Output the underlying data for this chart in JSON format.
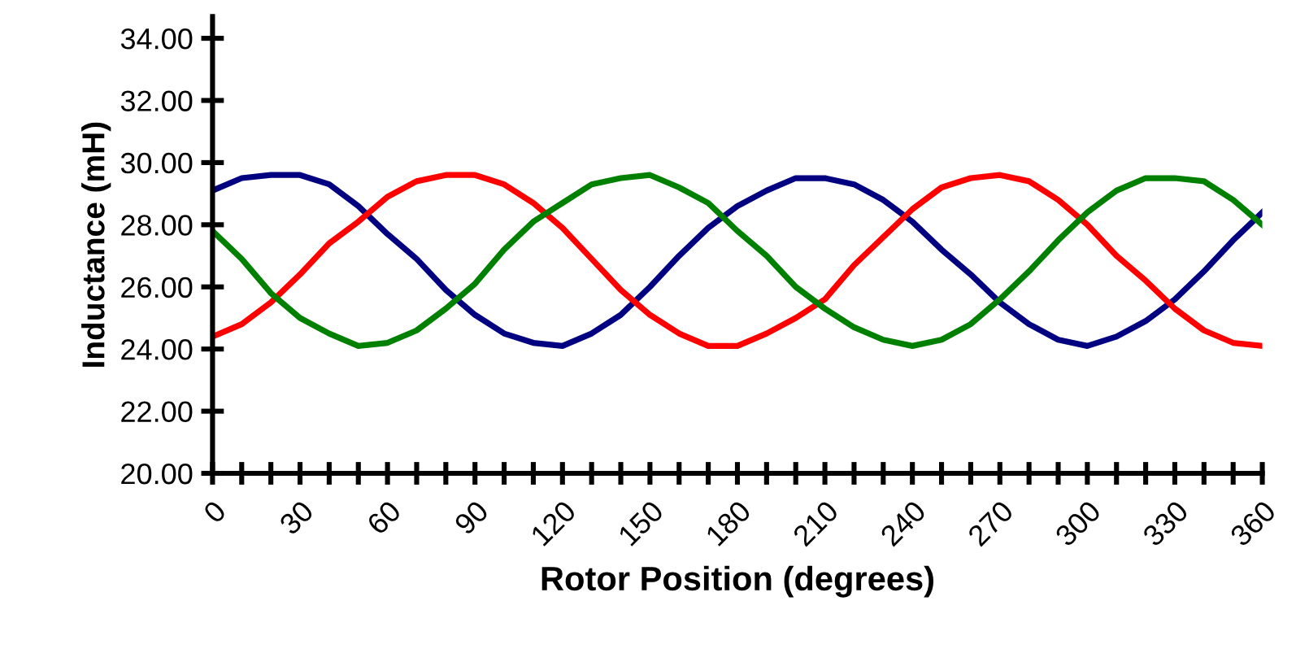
{
  "chart_data": {
    "type": "line",
    "xlabel": "Rotor Position (degrees)",
    "ylabel": "Inductance (mH)",
    "x": [
      0,
      10,
      20,
      30,
      40,
      50,
      60,
      70,
      80,
      90,
      100,
      110,
      120,
      130,
      140,
      150,
      160,
      170,
      180,
      190,
      200,
      210,
      220,
      230,
      240,
      250,
      260,
      270,
      280,
      290,
      300,
      310,
      320,
      330,
      340,
      350,
      360
    ],
    "series": [
      {
        "color": "#000080",
        "values": [
          29.1,
          29.5,
          29.6,
          29.6,
          29.3,
          28.6,
          27.7,
          26.9,
          25.9,
          25.1,
          24.5,
          24.2,
          24.1,
          24.5,
          25.1,
          26.0,
          27.0,
          27.9,
          28.6,
          29.1,
          29.5,
          29.5,
          29.3,
          28.8,
          28.1,
          27.2,
          26.4,
          25.5,
          24.8,
          24.3,
          24.1,
          24.4,
          24.9,
          25.6,
          26.5,
          27.5,
          28.4
        ]
      },
      {
        "color": "#ff0000",
        "values": [
          24.4,
          24.8,
          25.5,
          26.4,
          27.4,
          28.1,
          28.9,
          29.4,
          29.6,
          29.6,
          29.3,
          28.7,
          27.9,
          26.9,
          25.9,
          25.1,
          24.5,
          24.1,
          24.1,
          24.5,
          25.0,
          25.6,
          26.7,
          27.6,
          28.5,
          29.2,
          29.5,
          29.6,
          29.4,
          28.8,
          28.0,
          27.0,
          26.2,
          25.3,
          24.6,
          24.2,
          24.1
        ]
      },
      {
        "color": "#008000",
        "values": [
          27.8,
          26.9,
          25.8,
          25.0,
          24.5,
          24.1,
          24.2,
          24.6,
          25.3,
          26.1,
          27.2,
          28.1,
          28.7,
          29.3,
          29.5,
          29.6,
          29.2,
          28.7,
          27.8,
          27.0,
          26.0,
          25.3,
          24.7,
          24.3,
          24.1,
          24.3,
          24.8,
          25.6,
          26.5,
          27.5,
          28.4,
          29.1,
          29.5,
          29.5,
          29.4,
          28.8,
          28.0
        ]
      }
    ],
    "xlim": [
      0,
      360
    ],
    "xticks": [
      0,
      {
        "value": 10,
        "label": null
      },
      {
        "value": 20,
        "label": null
      },
      30,
      {
        "value": 40,
        "label": null
      },
      {
        "value": 50,
        "label": null
      },
      60,
      {
        "value": 70,
        "label": null
      },
      {
        "value": 80,
        "label": null
      },
      90,
      {
        "value": 100,
        "label": null
      },
      {
        "value": 110,
        "label": null
      },
      120,
      {
        "value": 130,
        "label": null
      },
      {
        "value": 140,
        "label": null
      },
      150,
      {
        "value": 160,
        "label": null
      },
      {
        "value": 170,
        "label": null
      },
      180,
      {
        "value": 190,
        "label": null
      },
      {
        "value": 200,
        "label": null
      },
      210,
      {
        "value": 220,
        "label": null
      },
      {
        "value": 230,
        "label": null
      },
      240,
      {
        "value": 250,
        "label": null
      },
      {
        "value": 260,
        "label": null
      },
      270,
      {
        "value": 280,
        "label": null
      },
      {
        "value": 290,
        "label": null
      },
      300,
      {
        "value": 310,
        "label": null
      },
      {
        "value": 320,
        "label": null
      },
      330,
      {
        "value": 340,
        "label": null
      },
      {
        "value": 350,
        "label": null
      },
      360
    ],
    "ylim": [
      20,
      34.7
    ],
    "yticks": [
      {
        "value": 20,
        "label": "20.00"
      },
      {
        "value": 22,
        "label": "22.00"
      },
      {
        "value": 24,
        "label": "24.00"
      },
      {
        "value": 26,
        "label": "26.00"
      },
      {
        "value": 28,
        "label": "28.00"
      },
      {
        "value": 30,
        "label": "30.00"
      },
      {
        "value": 32,
        "label": "32.00"
      },
      {
        "value": 34,
        "label": "34.00"
      }
    ],
    "grid": false,
    "legend": false,
    "marker": "none",
    "line_style": "solid"
  }
}
